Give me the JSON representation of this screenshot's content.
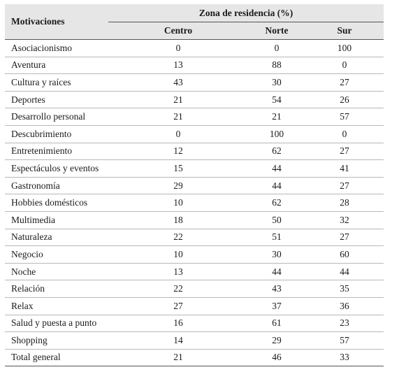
{
  "table": {
    "header": {
      "row_label": "Motivaciones",
      "group": "Zona de residencia (%)",
      "columns": [
        "Centro",
        "Norte",
        "Sur"
      ]
    },
    "rows": [
      {
        "label": "Asociacionismo",
        "values": [
          "0",
          "0",
          "100"
        ]
      },
      {
        "label": "Aventura",
        "values": [
          "13",
          "88",
          "0"
        ]
      },
      {
        "label": "Cultura y raíces",
        "values": [
          "43",
          "30",
          "27"
        ]
      },
      {
        "label": "Deportes",
        "values": [
          "21",
          "54",
          "26"
        ]
      },
      {
        "label": "Desarrollo personal",
        "values": [
          "21",
          "21",
          "57"
        ]
      },
      {
        "label": "Descubrimiento",
        "values": [
          "0",
          "100",
          "0"
        ]
      },
      {
        "label": "Entretenimiento",
        "values": [
          "12",
          "62",
          "27"
        ]
      },
      {
        "label": "Espectáculos y eventos",
        "values": [
          "15",
          "44",
          "41"
        ]
      },
      {
        "label": "Gastronomía",
        "values": [
          "29",
          "44",
          "27"
        ]
      },
      {
        "label": "Hobbies domésticos",
        "values": [
          "10",
          "62",
          "28"
        ]
      },
      {
        "label": "Multimedia",
        "values": [
          "18",
          "50",
          "32"
        ]
      },
      {
        "label": "Naturaleza",
        "values": [
          "22",
          "51",
          "27"
        ]
      },
      {
        "label": "Negocio",
        "values": [
          "10",
          "30",
          "60"
        ]
      },
      {
        "label": "Noche",
        "values": [
          "13",
          "44",
          "44"
        ]
      },
      {
        "label": "Relación",
        "values": [
          "22",
          "43",
          "35"
        ]
      },
      {
        "label": "Relax",
        "values": [
          "27",
          "37",
          "36"
        ]
      },
      {
        "label": "Salud y puesta a punto",
        "values": [
          "16",
          "61",
          "23"
        ]
      },
      {
        "label": "Shopping",
        "values": [
          "14",
          "29",
          "57"
        ]
      },
      {
        "label": "Total general",
        "values": [
          "21",
          "46",
          "33"
        ]
      }
    ]
  }
}
